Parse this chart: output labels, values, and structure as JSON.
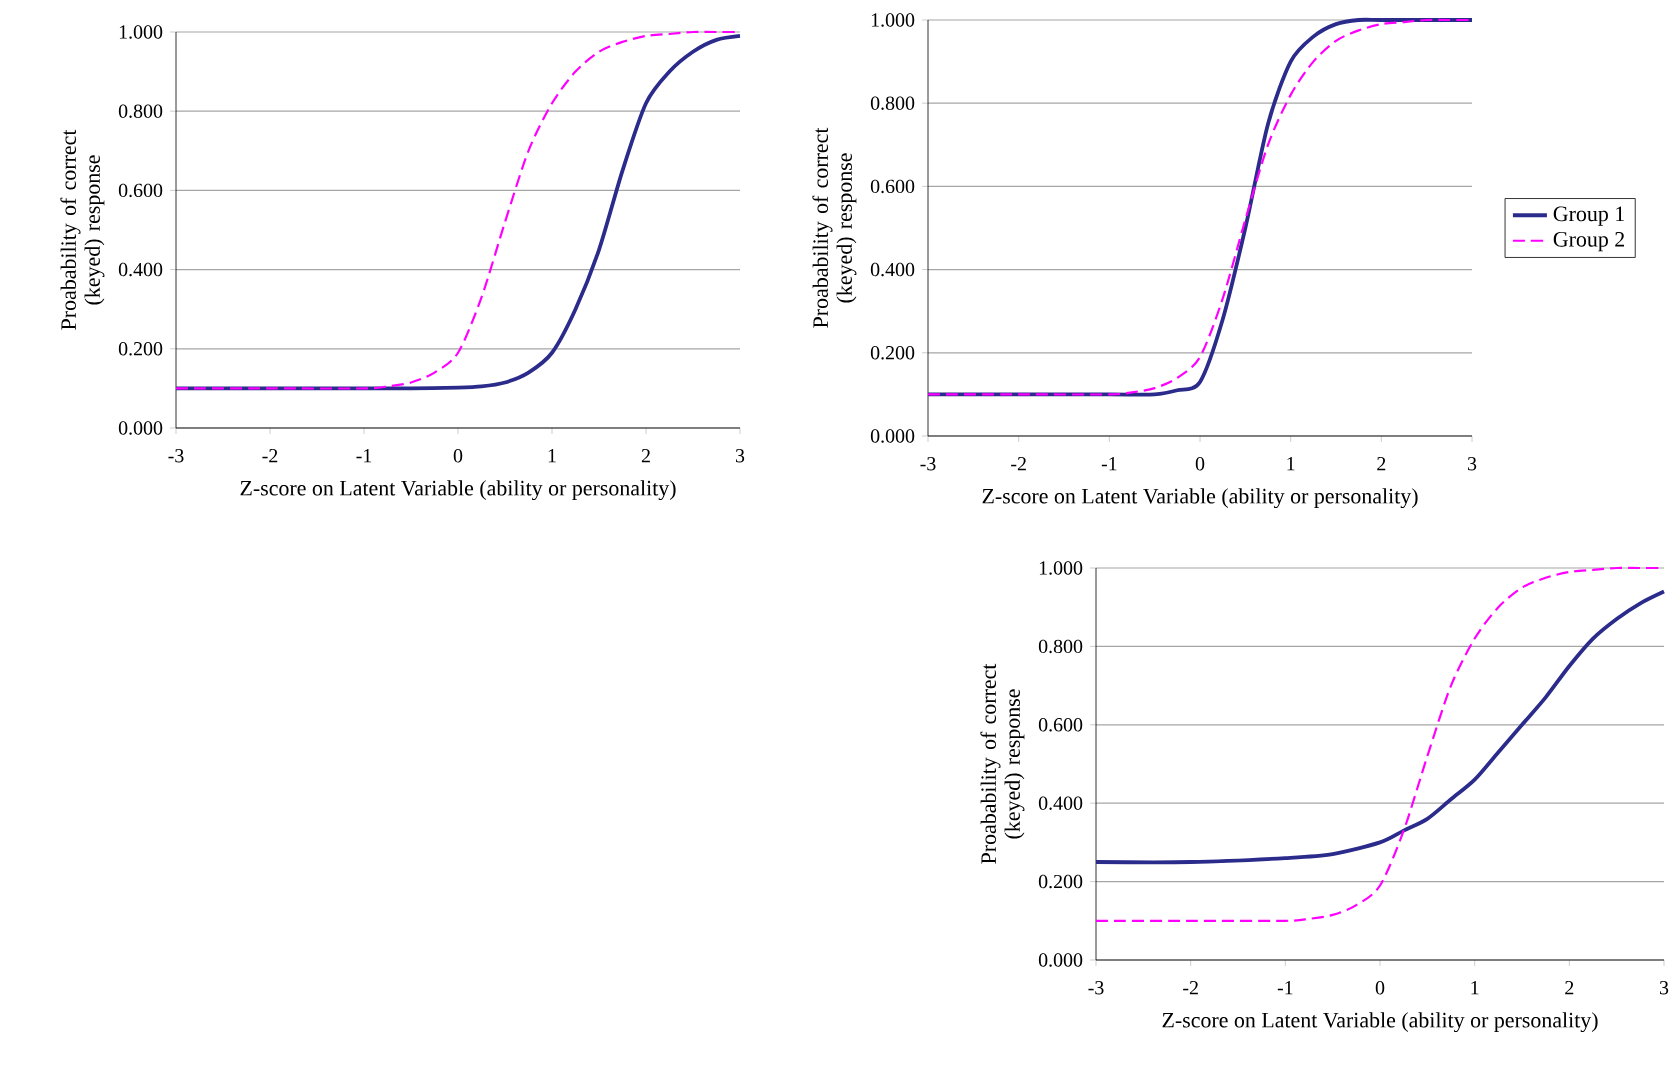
{
  "chart_data": [
    {
      "type": "line",
      "ylabel": "Proabability of correct (keyed) response",
      "xlabel": "Z-score on Latent Variable (ability or personality)",
      "xlim": [
        -3,
        3
      ],
      "ylim": [
        0,
        1
      ],
      "xticks": [
        -3,
        -2,
        -1,
        0,
        1,
        2,
        3
      ],
      "yticks": [
        {
          "value": 0,
          "label": "0.000"
        },
        {
          "value": 0.2,
          "label": "0.200"
        },
        {
          "value": 0.4,
          "label": "0.400"
        },
        {
          "value": 0.6,
          "label": "0.600"
        },
        {
          "value": 0.8,
          "label": "0.800"
        },
        {
          "value": 1,
          "label": "1.000"
        }
      ],
      "grid": "y",
      "series": [
        {
          "color": "#2b2b8c",
          "line_style": "solid",
          "x": [
            -3,
            -2,
            -1,
            -0.5,
            0,
            0.25,
            0.5,
            0.75,
            1,
            1.25,
            1.5,
            1.75,
            2,
            2.25,
            2.5,
            2.75,
            3
          ],
          "values": [
            0.1,
            0.1,
            0.1,
            0.1,
            0.102,
            0.105,
            0.115,
            0.14,
            0.19,
            0.3,
            0.45,
            0.65,
            0.82,
            0.9,
            0.95,
            0.98,
            0.99
          ]
        },
        {
          "color": "#ff00ff",
          "line_style": "dashed",
          "x": [
            -3,
            -2,
            -1,
            -0.75,
            -0.5,
            -0.25,
            0,
            0.25,
            0.5,
            0.75,
            1,
            1.25,
            1.5,
            1.75,
            2,
            2.25,
            2.5,
            2.75,
            3
          ],
          "values": [
            0.1,
            0.1,
            0.1,
            0.105,
            0.115,
            0.14,
            0.19,
            0.33,
            0.52,
            0.7,
            0.82,
            0.9,
            0.95,
            0.975,
            0.99,
            0.995,
            1,
            1,
            1
          ]
        }
      ]
    },
    {
      "type": "line",
      "ylabel": "Proabability of correct (keyed) response",
      "xlabel": "Z-score on Latent Variable (ability or personality)",
      "xlim": [
        -3,
        3
      ],
      "ylim": [
        0,
        1
      ],
      "xticks": [
        -3,
        -2,
        -1,
        0,
        1,
        2,
        3
      ],
      "yticks": [
        {
          "value": 0,
          "label": "0.000"
        },
        {
          "value": 0.2,
          "label": "0.200"
        },
        {
          "value": 0.4,
          "label": "0.400"
        },
        {
          "value": 0.6,
          "label": "0.600"
        },
        {
          "value": 0.8,
          "label": "0.800"
        },
        {
          "value": 1,
          "label": "1.000"
        }
      ],
      "grid": "y",
      "legend": "right",
      "series": [
        {
          "name": "Group 1",
          "color": "#2b2b8c",
          "line_style": "solid",
          "x": [
            -3,
            -2,
            -1,
            -0.5,
            -0.25,
            0,
            0.25,
            0.5,
            0.75,
            1,
            1.25,
            1.5,
            1.75,
            2,
            2.5,
            3
          ],
          "values": [
            0.1,
            0.1,
            0.1,
            0.1,
            0.11,
            0.13,
            0.28,
            0.5,
            0.75,
            0.9,
            0.96,
            0.99,
            1,
            1,
            1,
            1
          ]
        },
        {
          "name": "Group 2",
          "color": "#ff00ff",
          "line_style": "dashed",
          "x": [
            -3,
            -2,
            -1,
            -0.75,
            -0.5,
            -0.25,
            0,
            0.25,
            0.5,
            0.75,
            1,
            1.25,
            1.5,
            1.75,
            2,
            2.25,
            2.5,
            2.75,
            3
          ],
          "values": [
            0.1,
            0.1,
            0.1,
            0.105,
            0.115,
            0.14,
            0.19,
            0.33,
            0.52,
            0.7,
            0.82,
            0.9,
            0.95,
            0.975,
            0.99,
            0.995,
            1,
            1,
            1
          ]
        }
      ]
    },
    {
      "type": "line",
      "ylabel": "Proabability of correct (keyed) response",
      "xlabel": "Z-score on Latent Variable (ability or personality)",
      "xlim": [
        -3,
        3
      ],
      "ylim": [
        0,
        1
      ],
      "xticks": [
        -3,
        -2,
        -1,
        0,
        1,
        2,
        3
      ],
      "yticks": [
        {
          "value": 0,
          "label": "0.000"
        },
        {
          "value": 0.2,
          "label": "0.200"
        },
        {
          "value": 0.4,
          "label": "0.400"
        },
        {
          "value": 0.6,
          "label": "0.600"
        },
        {
          "value": 0.8,
          "label": "0.800"
        },
        {
          "value": 1,
          "label": "1.000"
        }
      ],
      "grid": "y",
      "series": [
        {
          "color": "#2b2b8c",
          "line_style": "solid",
          "x": [
            -3,
            -2,
            -1,
            -0.5,
            0,
            0.25,
            0.5,
            0.75,
            1,
            1.25,
            1.5,
            1.75,
            2,
            2.25,
            2.5,
            2.75,
            3
          ],
          "values": [
            0.25,
            0.25,
            0.26,
            0.27,
            0.3,
            0.33,
            0.36,
            0.41,
            0.46,
            0.53,
            0.6,
            0.67,
            0.75,
            0.82,
            0.87,
            0.91,
            0.94
          ]
        },
        {
          "color": "#ff00ff",
          "line_style": "dashed",
          "x": [
            -3,
            -2,
            -1,
            -0.75,
            -0.5,
            -0.25,
            0,
            0.25,
            0.5,
            0.75,
            1,
            1.25,
            1.5,
            1.75,
            2,
            2.25,
            2.5,
            2.75,
            3
          ],
          "values": [
            0.1,
            0.1,
            0.1,
            0.105,
            0.115,
            0.14,
            0.19,
            0.33,
            0.52,
            0.7,
            0.82,
            0.9,
            0.95,
            0.975,
            0.99,
            0.995,
            1,
            1,
            1
          ]
        }
      ]
    }
  ]
}
